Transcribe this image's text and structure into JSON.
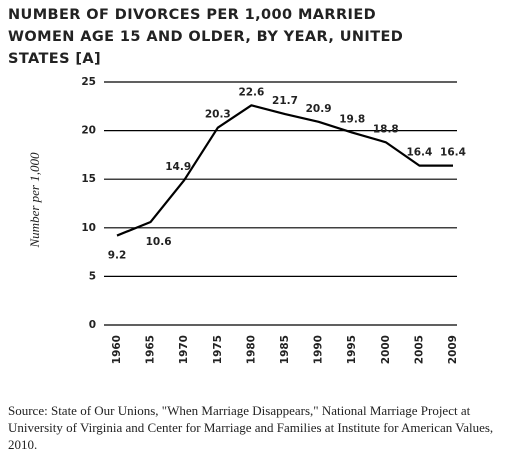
{
  "chart_data": {
    "type": "line",
    "title": "NUMBER OF DIVORCES PER 1,000 MARRIED WOMEN AGE 15 AND OLDER, BY YEAR, UNITED STATES [A]",
    "ylabel": "Number per 1,000",
    "categories": [
      "1960",
      "1965",
      "1970",
      "1975",
      "1980",
      "1985",
      "1990",
      "1995",
      "2000",
      "2005",
      "2009"
    ],
    "values": [
      9.2,
      10.6,
      14.9,
      20.3,
      22.6,
      21.7,
      20.9,
      19.8,
      18.8,
      16.4,
      16.4
    ],
    "color": "#000000",
    "ylim": [
      0,
      25
    ],
    "yticks": [
      0,
      5,
      10,
      15,
      20,
      25
    ],
    "grid": true,
    "source": "Source: State of Our Unions, \"When Marriage Disappears,\" National Marriage Project at University of Virginia and Center for Marriage and Families at Institute for American Values, 2010."
  }
}
